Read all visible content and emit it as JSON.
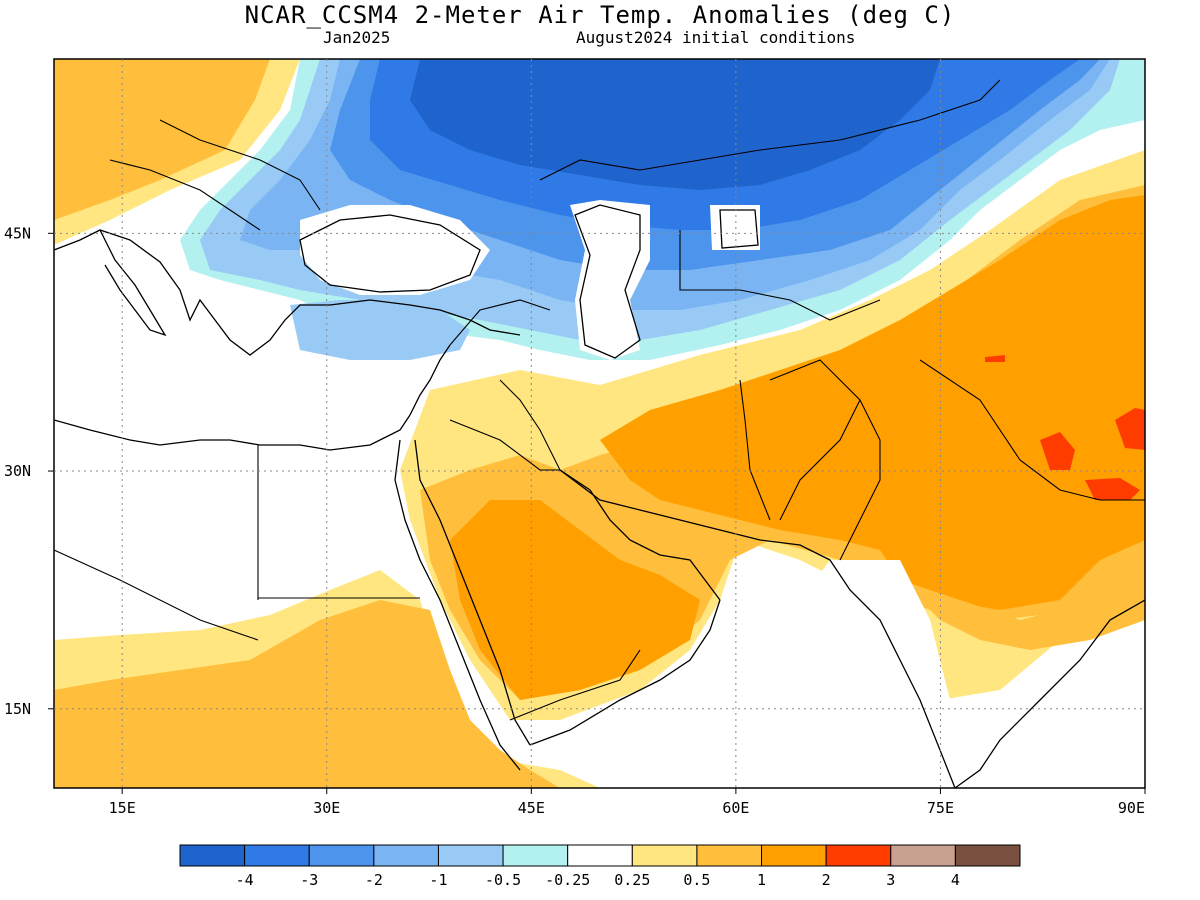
{
  "title": "NCAR_CCSM4 2-Meter Air Temp. Anomalies (deg C)",
  "subtitle_left": "Jan2025",
  "subtitle_right": "August2024 initial conditions",
  "map": {
    "lat_range": [
      10,
      56
    ],
    "lon_range": [
      10,
      90
    ],
    "lat_labels": [
      "45N",
      "30N",
      "15N"
    ],
    "lat_values": [
      45,
      30,
      15
    ],
    "lon_labels": [
      "15E",
      "30E",
      "45E",
      "60E",
      "75E",
      "90E"
    ],
    "lon_values": [
      15,
      30,
      45,
      60,
      75,
      90
    ]
  },
  "legend": {
    "colors": [
      "#1e64cc",
      "#2f7ae6",
      "#4d95ec",
      "#7ab4f2",
      "#98caf5",
      "#b3f0f0",
      "#ffffff",
      "#ffe680",
      "#ffbf3c",
      "#ffa000",
      "#ff3c00",
      "#c8a090",
      "#7a5040"
    ],
    "labels": [
      "-4",
      "-3",
      "-2",
      "-1",
      "-0.5",
      "-0.25",
      "0.25",
      "0.5",
      "1",
      "2",
      "3",
      "4"
    ]
  },
  "anomaly_colors": {
    "strong_cold": "#1e64cc",
    "cold": "#2f7ae6",
    "cool": "#4d95ec",
    "mild_cool": "#7ab4f2",
    "slight_cool": "#98caf5",
    "near_normal_cool": "#b3f0f0",
    "neutral": "#ffffff",
    "slight_warm": "#ffe680",
    "warm": "#ffbf3c",
    "hot": "#ffa000",
    "very_hot": "#ff3c00"
  }
}
